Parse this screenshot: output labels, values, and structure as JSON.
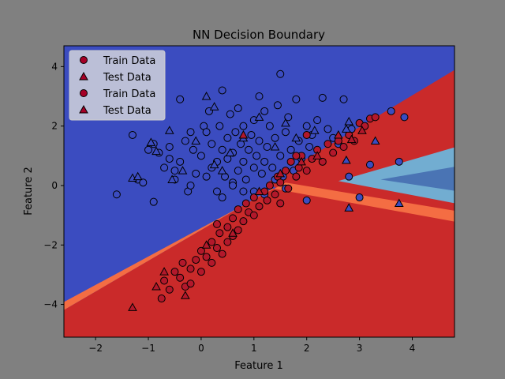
{
  "chart_data": {
    "type": "scatter",
    "title": "NN Decision Boundary",
    "xlabel": "Feature 1",
    "ylabel": "Feature 2",
    "xlim": [
      -2.6,
      4.8
    ],
    "ylim": [
      -5.1,
      4.7
    ],
    "xticks": [
      -2,
      -1,
      0,
      1,
      2,
      3,
      4
    ],
    "yticks": [
      -4,
      -2,
      0,
      2,
      4
    ],
    "grid": false,
    "legend_position": "top-left",
    "background": {
      "description_colors": [
        "#3b4cc0",
        "#4a74b4",
        "#72add1",
        "#c7e6f0",
        "#ffffbf",
        "#fdbf71",
        "#f46d43",
        "#ca2a2a"
      ],
      "boundary": "V-shaped with apex near (1.8, 0.1); blue (class 0) upper-left, red (class 1) lower-right, light-blue wedge pointing right from x≈2.6"
    },
    "legend": [
      {
        "label": "Train Data",
        "marker": "circle",
        "color": "#a50026"
      },
      {
        "label": "Test Data",
        "marker": "triangle",
        "color": "#a50026"
      },
      {
        "label": "Train Data",
        "marker": "circle",
        "color": "#a50026"
      },
      {
        "label": "Test Data",
        "marker": "triangle",
        "color": "#a50026"
      }
    ],
    "colors": {
      "class0": "#3b4cc0",
      "class1": "#b2182b"
    },
    "series": [
      {
        "name": "Train Data",
        "class": 0,
        "marker": "circle",
        "points": [
          [
            -1.6,
            -0.3
          ],
          [
            -1.3,
            1.7
          ],
          [
            -1.2,
            0.2
          ],
          [
            -1.0,
            1.2
          ],
          [
            -1.1,
            0.1
          ],
          [
            -0.9,
            -0.55
          ],
          [
            -0.9,
            1.4
          ],
          [
            -0.8,
            1.1
          ],
          [
            -0.7,
            0.6
          ],
          [
            -0.6,
            0.9
          ],
          [
            -0.6,
            1.3
          ],
          [
            -0.5,
            0.5
          ],
          [
            -0.5,
            0.2
          ],
          [
            -0.4,
            0.8
          ],
          [
            -0.4,
            2.9
          ],
          [
            -0.3,
            1.5
          ],
          [
            -0.25,
            -0.2
          ],
          [
            -0.2,
            1.8
          ],
          [
            -0.2,
            0.0
          ],
          [
            -0.15,
            1.2
          ],
          [
            -0.1,
            0.4
          ],
          [
            0.0,
            1.0
          ],
          [
            0.05,
            2.0
          ],
          [
            0.1,
            0.3
          ],
          [
            0.1,
            1.8
          ],
          [
            0.15,
            2.5
          ],
          [
            0.2,
            0.6
          ],
          [
            0.2,
            1.4
          ],
          [
            0.3,
            0.8
          ],
          [
            0.3,
            -0.2
          ],
          [
            0.35,
            2.0
          ],
          [
            0.4,
            1.2
          ],
          [
            0.4,
            3.2
          ],
          [
            0.45,
            0.3
          ],
          [
            0.5,
            1.6
          ],
          [
            0.5,
            0.9
          ],
          [
            0.55,
            2.4
          ],
          [
            0.6,
            0.1
          ],
          [
            0.6,
            1.1
          ],
          [
            0.65,
            1.8
          ],
          [
            0.7,
            0.5
          ],
          [
            0.7,
            2.6
          ],
          [
            0.75,
            1.4
          ],
          [
            0.8,
            0.8
          ],
          [
            0.8,
            2.0
          ],
          [
            0.85,
            0.2
          ],
          [
            0.9,
            1.2
          ],
          [
            0.95,
            1.7
          ],
          [
            1.0,
            0.6
          ],
          [
            1.0,
            2.2
          ],
          [
            1.05,
            1.0
          ],
          [
            1.1,
            1.5
          ],
          [
            1.1,
            3.0
          ],
          [
            1.15,
            0.4
          ],
          [
            1.2,
            2.5
          ],
          [
            1.2,
            0.8
          ],
          [
            1.25,
            1.3
          ],
          [
            1.3,
            2.0
          ],
          [
            1.35,
            0.6
          ],
          [
            1.4,
            1.6
          ],
          [
            1.45,
            2.7
          ],
          [
            1.5,
            1.0
          ],
          [
            1.5,
            3.75
          ],
          [
            1.55,
            0.3
          ],
          [
            1.6,
            1.8
          ],
          [
            1.65,
            2.3
          ],
          [
            1.7,
            1.2
          ],
          [
            1.75,
            0.5
          ],
          [
            1.8,
            2.9
          ],
          [
            1.85,
            1.5
          ],
          [
            1.9,
            0.9
          ],
          [
            2.0,
            2.0
          ],
          [
            2.05,
            1.3
          ],
          [
            2.1,
            1.7
          ],
          [
            2.2,
            2.2
          ],
          [
            2.3,
            2.95
          ],
          [
            2.4,
            1.9
          ],
          [
            2.5,
            1.6
          ],
          [
            2.6,
            1.4
          ],
          [
            2.7,
            2.9
          ],
          [
            2.85,
            1.9
          ],
          [
            3.0,
            -0.4
          ],
          [
            3.2,
            0.7
          ],
          [
            3.6,
            2.5
          ],
          [
            3.85,
            2.3
          ],
          [
            3.75,
            0.8
          ],
          [
            2.8,
            0.3
          ],
          [
            2.0,
            -0.5
          ],
          [
            1.6,
            -0.1
          ],
          [
            1.4,
            0.2
          ],
          [
            1.2,
            -0.3
          ],
          [
            1.0,
            -0.2
          ],
          [
            0.8,
            -0.2
          ],
          [
            0.6,
            0.0
          ],
          [
            0.4,
            -0.4
          ]
        ]
      },
      {
        "name": "Train Data",
        "class": 1,
        "marker": "circle",
        "points": [
          [
            -0.75,
            -3.8
          ],
          [
            -0.7,
            -3.2
          ],
          [
            -0.6,
            -3.5
          ],
          [
            -0.5,
            -2.9
          ],
          [
            -0.4,
            -3.1
          ],
          [
            -0.35,
            -2.6
          ],
          [
            -0.3,
            -3.4
          ],
          [
            -0.2,
            -2.8
          ],
          [
            -0.2,
            -3.3
          ],
          [
            -0.1,
            -2.5
          ],
          [
            0.0,
            -2.2
          ],
          [
            0.0,
            -2.9
          ],
          [
            0.1,
            -2.4
          ],
          [
            0.2,
            -1.9
          ],
          [
            0.2,
            -2.6
          ],
          [
            0.3,
            -2.1
          ],
          [
            0.35,
            -1.6
          ],
          [
            0.4,
            -2.3
          ],
          [
            0.5,
            -1.4
          ],
          [
            0.5,
            -1.9
          ],
          [
            0.6,
            -1.1
          ],
          [
            0.6,
            -1.7
          ],
          [
            0.7,
            -0.8
          ],
          [
            0.7,
            -1.5
          ],
          [
            0.8,
            -1.2
          ],
          [
            0.85,
            -0.6
          ],
          [
            0.9,
            -0.9
          ],
          [
            1.0,
            -0.4
          ],
          [
            1.0,
            -1.0
          ],
          [
            1.1,
            -0.7
          ],
          [
            1.2,
            -0.2
          ],
          [
            1.25,
            -0.5
          ],
          [
            1.3,
            0.0
          ],
          [
            1.4,
            -0.3
          ],
          [
            1.45,
            0.3
          ],
          [
            1.5,
            0.1
          ],
          [
            1.6,
            0.5
          ],
          [
            1.65,
            -0.1
          ],
          [
            1.7,
            0.8
          ],
          [
            1.8,
            0.3
          ],
          [
            1.85,
            0.6
          ],
          [
            1.9,
            1.0
          ],
          [
            2.0,
            0.5
          ],
          [
            2.1,
            0.9
          ],
          [
            2.2,
            1.2
          ],
          [
            2.3,
            0.8
          ],
          [
            2.4,
            1.4
          ],
          [
            2.5,
            1.1
          ],
          [
            2.6,
            1.5
          ],
          [
            2.7,
            1.3
          ],
          [
            2.8,
            1.7
          ],
          [
            2.9,
            1.5
          ],
          [
            3.0,
            2.1
          ],
          [
            3.1,
            2.0
          ],
          [
            3.2,
            2.25
          ],
          [
            3.3,
            2.3
          ],
          [
            2.0,
            1.7
          ],
          [
            1.8,
            1.0
          ],
          [
            1.5,
            -0.6
          ],
          [
            0.3,
            -1.3
          ]
        ]
      },
      {
        "name": "Test Data",
        "class": 0,
        "marker": "triangle",
        "points": [
          [
            -1.3,
            0.25
          ],
          [
            -1.2,
            0.3
          ],
          [
            -0.95,
            1.45
          ],
          [
            -0.85,
            1.15
          ],
          [
            -0.6,
            1.85
          ],
          [
            -0.55,
            0.2
          ],
          [
            -0.35,
            0.5
          ],
          [
            -0.1,
            1.5
          ],
          [
            0.1,
            3.0
          ],
          [
            0.25,
            2.65
          ],
          [
            0.25,
            0.7
          ],
          [
            0.4,
            0.5
          ],
          [
            0.55,
            1.1
          ],
          [
            0.8,
            1.6
          ],
          [
            1.1,
            2.3
          ],
          [
            1.4,
            1.3
          ],
          [
            1.6,
            2.1
          ],
          [
            1.8,
            1.6
          ],
          [
            2.15,
            1.85
          ],
          [
            2.75,
            1.9
          ],
          [
            2.8,
            -0.75
          ],
          [
            2.75,
            0.85
          ],
          [
            3.3,
            1.5
          ],
          [
            3.75,
            -0.6
          ],
          [
            2.8,
            2.15
          ]
        ]
      },
      {
        "name": "Test Data",
        "class": 1,
        "marker": "triangle",
        "points": [
          [
            -1.3,
            -4.1
          ],
          [
            -0.85,
            -3.4
          ],
          [
            -0.7,
            -2.9
          ],
          [
            -0.3,
            -3.7
          ],
          [
            0.1,
            -2.0
          ],
          [
            0.6,
            -1.6
          ],
          [
            1.1,
            -0.2
          ],
          [
            1.5,
            0.4
          ],
          [
            1.9,
            0.8
          ],
          [
            2.2,
            1.0
          ],
          [
            2.6,
            1.7
          ],
          [
            2.85,
            1.55
          ],
          [
            0.8,
            1.7
          ],
          [
            3.05,
            1.85
          ]
        ]
      }
    ]
  }
}
